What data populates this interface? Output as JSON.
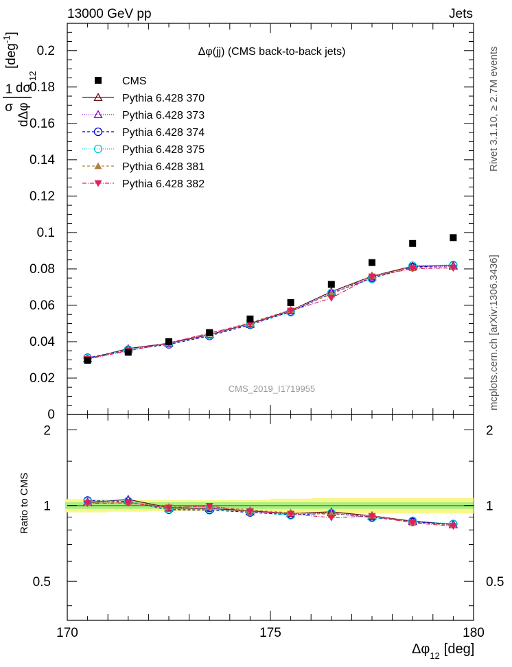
{
  "header": {
    "left": "13000 GeV pp",
    "right": "Jets"
  },
  "side_text": {
    "rivet": "Rivet 3.1.10, ≥ 2.7M events",
    "mcplots": "mcplots.cern.ch [arXiv:1306.3436]"
  },
  "chart_data": {
    "type": "scatter",
    "title": "Δφ(jj) (CMS back-to-back jets)",
    "watermark": "CMS_2019_I1719955",
    "xlabel": "Δφ",
    "xlabel_sub": "12",
    "xlabel_unit": "[deg]",
    "ylabel_num": "1",
    "ylabel_den": "σ",
    "ylabel_dnum": "dσ",
    "ylabel_dden": "dΔφ",
    "ylabel_sub": "12",
    "ylabel_unit": "[deg",
    "ylabel_unit_sup": "-1",
    "ylabel_unit_close": "]",
    "ratio_ylabel": "Ratio to CMS",
    "xlim": [
      170,
      180
    ],
    "ylim": [
      0,
      0.215
    ],
    "ratio_ylim": [
      0.35,
      2.3
    ],
    "x_ticks": [
      "170",
      "175",
      "180"
    ],
    "y_ticks": [
      "0",
      "0.02",
      "0.04",
      "0.06",
      "0.08",
      "0.1",
      "0.12",
      "0.14",
      "0.16",
      "0.18",
      "0.2"
    ],
    "ratio_ticks": [
      "0.5",
      "1",
      "2"
    ],
    "x": [
      170.5,
      171.5,
      172.5,
      173.5,
      174.5,
      175.5,
      176.5,
      177.5,
      178.5,
      179.5
    ],
    "data": {
      "name": "CMS",
      "values": [
        0.0298,
        0.0342,
        0.04,
        0.045,
        0.0525,
        0.0615,
        0.0715,
        0.0835,
        0.094,
        0.0972
      ]
    },
    "band_inner": [
      0.03,
      0.03,
      0.03,
      0.03,
      0.03,
      0.03,
      0.03,
      0.03,
      0.03,
      0.03
    ],
    "band_outer": [
      0.06,
      0.055,
      0.05,
      0.05,
      0.055,
      0.065,
      0.07,
      0.07,
      0.07,
      0.07
    ],
    "series": [
      {
        "name": "Pythia 6.428 370",
        "color": "#6b0f1a",
        "dash": "",
        "marker": "triangle-open",
        "values": [
          0.0306,
          0.0362,
          0.0392,
          0.0438,
          0.05,
          0.0572,
          0.0675,
          0.076,
          0.0815,
          0.0818
        ]
      },
      {
        "name": "Pythia 6.428 373",
        "color": "#9400d3",
        "dash": "1,2",
        "marker": "triangle-open",
        "values": [
          0.0308,
          0.036,
          0.039,
          0.044,
          0.0495,
          0.057,
          0.067,
          0.0755,
          0.0812,
          0.0815
        ]
      },
      {
        "name": "Pythia 6.428 374",
        "color": "#0000cc",
        "dash": "4,3",
        "marker": "circle-open",
        "values": [
          0.0312,
          0.0355,
          0.0385,
          0.0432,
          0.0493,
          0.0565,
          0.0665,
          0.075,
          0.081,
          0.082
        ]
      },
      {
        "name": "Pythia 6.428 375",
        "color": "#00cccc",
        "dash": "1,2",
        "marker": "circle-open",
        "values": [
          0.031,
          0.0357,
          0.0387,
          0.0435,
          0.0496,
          0.0562,
          0.0668,
          0.0745,
          0.0818,
          0.0822
        ]
      },
      {
        "name": "Pythia 6.428 381",
        "color": "#b08040",
        "dash": "4,3",
        "marker": "triangle-filled",
        "values": [
          0.0305,
          0.0352,
          0.0395,
          0.0445,
          0.0505,
          0.0575,
          0.066,
          0.0762,
          0.0805,
          0.0812
        ]
      },
      {
        "name": "Pythia 6.428 382",
        "color": "#e0205a",
        "dash": "6,2,1,2",
        "marker": "triangle-down-filled",
        "values": [
          0.0304,
          0.035,
          0.0392,
          0.0448,
          0.0498,
          0.057,
          0.064,
          0.0758,
          0.0802,
          0.0805
        ]
      }
    ]
  }
}
